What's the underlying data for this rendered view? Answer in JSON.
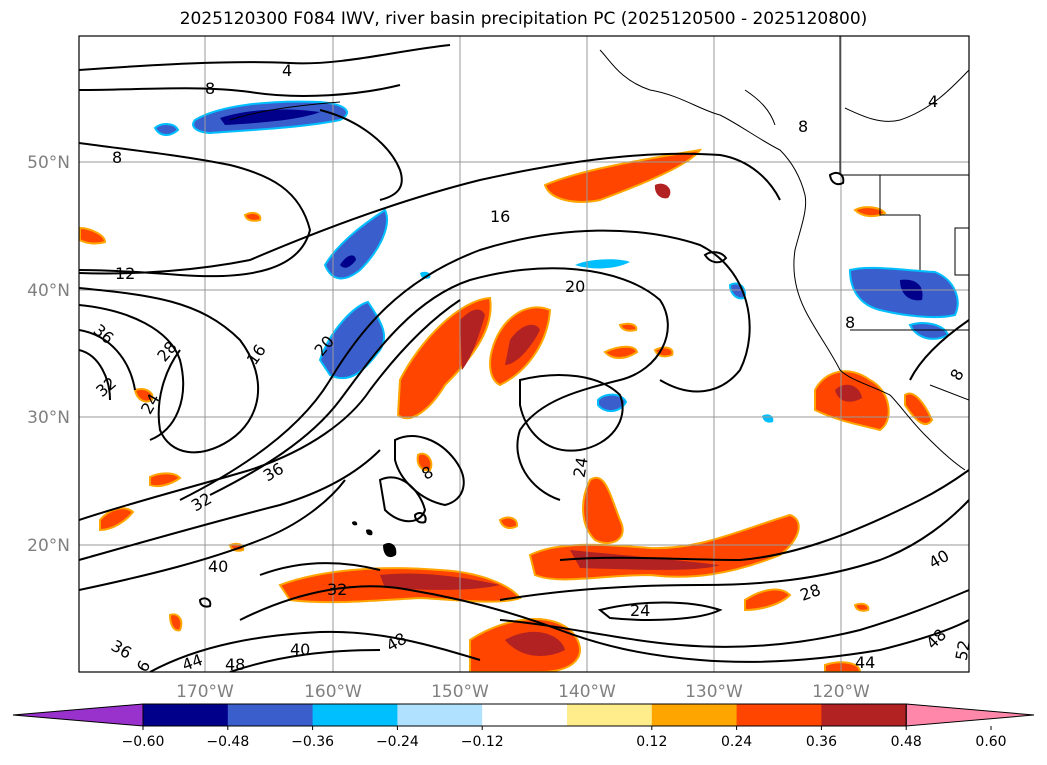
{
  "title": "2025120300 F084 IWV, river basin precipitation PC (2025120500 - 2025120800)",
  "map": {
    "lat_labels": [
      "50°N",
      "40°N",
      "30°N",
      "20°N"
    ],
    "lon_labels": [
      "170°W",
      "160°W",
      "150°W",
      "140°W",
      "130°W",
      "120°W"
    ],
    "contour_labels": [
      {
        "text": "4"
      },
      {
        "text": "8"
      },
      {
        "text": "8"
      },
      {
        "text": "8"
      },
      {
        "text": "4"
      },
      {
        "text": "12"
      },
      {
        "text": "16"
      },
      {
        "text": "16"
      },
      {
        "text": "20"
      },
      {
        "text": "20"
      },
      {
        "text": "24"
      },
      {
        "text": "24"
      },
      {
        "text": "28"
      },
      {
        "text": "28"
      },
      {
        "text": "32"
      },
      {
        "text": "32"
      },
      {
        "text": "32"
      },
      {
        "text": "36"
      },
      {
        "text": "36"
      },
      {
        "text": "40"
      },
      {
        "text": "40"
      },
      {
        "text": "40"
      },
      {
        "text": "44"
      },
      {
        "text": "44"
      },
      {
        "text": "48"
      },
      {
        "text": "48"
      },
      {
        "text": "48"
      },
      {
        "text": "52"
      },
      {
        "text": "8"
      },
      {
        "text": "8"
      },
      {
        "text": "8"
      },
      {
        "text": "24"
      },
      {
        "text": "36"
      },
      {
        "text": "6"
      }
    ]
  },
  "colorbar": {
    "ticks": [
      "−0.60",
      "−0.48",
      "−0.36",
      "−0.24",
      "−0.12",
      "0.12",
      "0.24",
      "0.36",
      "0.48",
      "0.60"
    ],
    "colors": [
      "#9932cc",
      "#00008b",
      "#3a5fcd",
      "#00bfff",
      "#b0e2ff",
      "#ffffff",
      "#ffec8b",
      "#ffa500",
      "#ff4500",
      "#b22222",
      "#ff88aa"
    ]
  }
}
